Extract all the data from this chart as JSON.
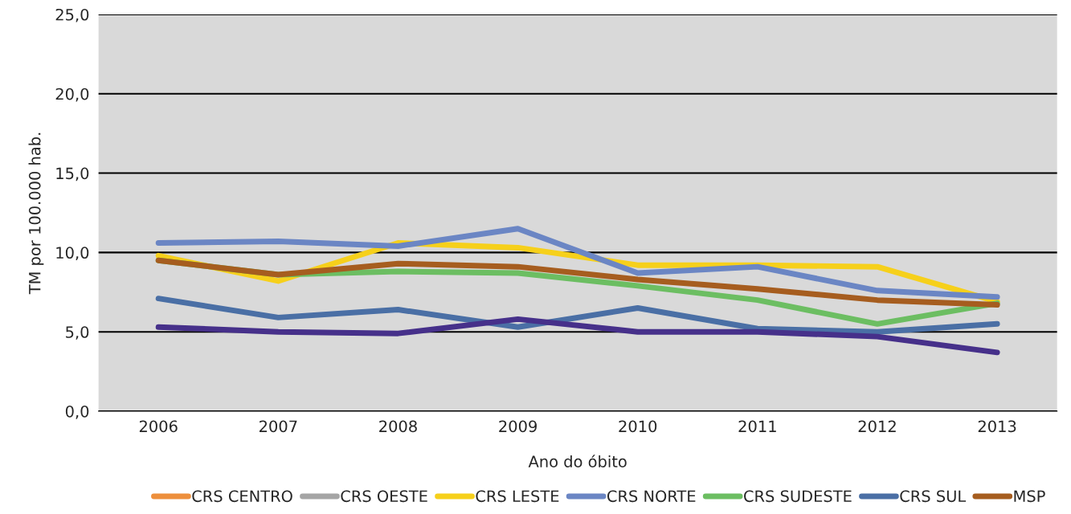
{
  "chart_data": {
    "type": "line",
    "xlabel": "Ano do óbito",
    "ylabel": "TM por 100.000 hab.",
    "categories": [
      "2006",
      "2007",
      "2008",
      "2009",
      "2010",
      "2011",
      "2012",
      "2013"
    ],
    "ylim": [
      0,
      25
    ],
    "yticks": [
      {
        "value": 0,
        "label": "0,0"
      },
      {
        "value": 5,
        "label": "5,0"
      },
      {
        "value": 10,
        "label": "10,0"
      },
      {
        "value": 15,
        "label": "15,0"
      },
      {
        "value": 20,
        "label": "20,0"
      },
      {
        "value": 25,
        "label": "25,0"
      }
    ],
    "grid": "y",
    "legend": "bottom",
    "marker": "none",
    "line_style": "solid",
    "series": [
      {
        "name": "CRS CENTRO",
        "color": "#ed8f3c",
        "values": [
          null,
          null,
          null,
          null,
          null,
          null,
          null,
          null
        ]
      },
      {
        "name": "CRS OESTE",
        "color": "#a5a5a5",
        "values": [
          null,
          null,
          null,
          null,
          null,
          null,
          null,
          null
        ]
      },
      {
        "name": "CRS LESTE",
        "color": "#f6d01b",
        "values": [
          9.8,
          8.2,
          10.6,
          10.3,
          9.2,
          9.2,
          9.1,
          6.9
        ]
      },
      {
        "name": "CRS NORTE",
        "color": "#6b86c4",
        "values": [
          10.6,
          10.7,
          10.4,
          11.5,
          8.7,
          9.1,
          7.6,
          7.2
        ]
      },
      {
        "name": "CRS SUDESTE",
        "color": "#6cbe62",
        "values": [
          9.5,
          8.6,
          8.8,
          8.7,
          7.9,
          7.0,
          5.5,
          6.8
        ]
      },
      {
        "name": "CRS SUL",
        "color": "#4a6fa5",
        "values": [
          7.1,
          5.9,
          6.4,
          5.3,
          6.5,
          5.2,
          5.0,
          5.5
        ]
      },
      {
        "name": "MSP",
        "color": "#a65d1f",
        "values": [
          9.5,
          8.6,
          9.3,
          9.1,
          8.3,
          7.7,
          7.0,
          6.7
        ]
      },
      {
        "color": "#46308a",
        "values": [
          5.3,
          5.0,
          4.9,
          5.8,
          5.0,
          5.0,
          4.7,
          3.7
        ]
      }
    ]
  }
}
